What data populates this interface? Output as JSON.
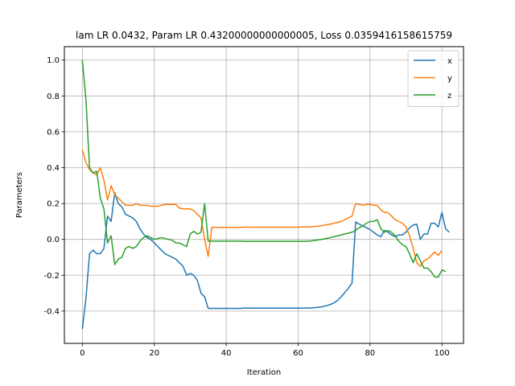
{
  "chart_data": {
    "type": "line",
    "title": "lam LR 0.0432, Param LR 0.43200000000000005, Loss 0.0359416158615759",
    "xlabel": "Iteration",
    "ylabel": "Parameters",
    "xlim": [
      -5,
      106
    ],
    "ylim": [
      -0.58,
      1.075
    ],
    "xticks": [
      0,
      20,
      40,
      60,
      80,
      100
    ],
    "yticks": [
      -0.4,
      -0.2,
      0.0,
      0.2,
      0.4,
      0.6,
      0.8,
      1.0
    ],
    "grid": true,
    "legend_position": "top-right",
    "series": [
      {
        "name": "x",
        "color": "#1f77b4",
        "values": [
          -0.5,
          -0.33,
          -0.08,
          -0.06,
          -0.08,
          -0.08,
          -0.05,
          0.13,
          0.1,
          0.26,
          0.2,
          0.18,
          0.14,
          0.13,
          0.12,
          0.1,
          0.06,
          0.03,
          0.01,
          0.0,
          -0.02,
          -0.04,
          -0.06,
          -0.08,
          -0.09,
          -0.1,
          -0.11,
          -0.13,
          -0.15,
          -0.2,
          -0.19,
          -0.2,
          -0.23,
          -0.3,
          -0.32,
          -0.385,
          -0.385,
          -0.385,
          -0.385,
          -0.385,
          -0.385,
          -0.385,
          -0.385,
          -0.385,
          -0.385,
          -0.383,
          -0.383,
          -0.383,
          -0.383,
          -0.383,
          -0.383,
          -0.383,
          -0.383,
          -0.383,
          -0.383,
          -0.383,
          -0.383,
          -0.383,
          -0.383,
          -0.383,
          -0.383,
          -0.383,
          -0.383,
          -0.383,
          -0.382,
          -0.38,
          -0.378,
          -0.374,
          -0.369,
          -0.363,
          -0.354,
          -0.34,
          -0.32,
          -0.296,
          -0.272,
          -0.244,
          0.097,
          0.085,
          0.075,
          0.065,
          0.055,
          0.04,
          0.025,
          0.015,
          0.05,
          0.04,
          0.025,
          0.015,
          0.025,
          0.025,
          0.04,
          0.065,
          0.08,
          0.085,
          0.0,
          0.03,
          0.03,
          0.09,
          0.09,
          0.07,
          0.15,
          0.06,
          0.04
        ]
      },
      {
        "name": "y",
        "color": "#ff7f0e",
        "values": [
          0.5,
          0.43,
          0.39,
          0.37,
          0.36,
          0.4,
          0.33,
          0.22,
          0.3,
          0.25,
          0.23,
          0.21,
          0.19,
          0.19,
          0.19,
          0.2,
          0.19,
          0.19,
          0.19,
          0.185,
          0.185,
          0.185,
          0.19,
          0.195,
          0.195,
          0.195,
          0.195,
          0.175,
          0.17,
          0.17,
          0.17,
          0.16,
          0.14,
          0.12,
          0.0,
          -0.095,
          0.067,
          0.067,
          0.067,
          0.067,
          0.067,
          0.067,
          0.067,
          0.067,
          0.067,
          0.068,
          0.068,
          0.068,
          0.068,
          0.068,
          0.068,
          0.068,
          0.068,
          0.068,
          0.068,
          0.068,
          0.068,
          0.068,
          0.068,
          0.068,
          0.068,
          0.069,
          0.069,
          0.07,
          0.071,
          0.073,
          0.075,
          0.078,
          0.082,
          0.085,
          0.09,
          0.095,
          0.1,
          0.11,
          0.12,
          0.13,
          0.2,
          0.195,
          0.19,
          0.195,
          0.195,
          0.19,
          0.19,
          0.165,
          0.15,
          0.15,
          0.13,
          0.11,
          0.1,
          0.09,
          0.07,
          0.02,
          -0.05,
          -0.13,
          -0.15,
          -0.12,
          -0.11,
          -0.09,
          -0.07,
          -0.09,
          -0.06
        ]
      },
      {
        "name": "z",
        "color": "#2ca02c",
        "values": [
          1.0,
          0.78,
          0.4,
          0.37,
          0.38,
          0.23,
          0.17,
          -0.02,
          0.02,
          -0.14,
          -0.11,
          -0.1,
          -0.05,
          -0.04,
          -0.05,
          -0.04,
          -0.01,
          0.01,
          0.02,
          0.01,
          0.0,
          0.005,
          0.01,
          0.005,
          0.0,
          -0.005,
          -0.02,
          -0.02,
          -0.03,
          -0.04,
          0.03,
          0.045,
          0.03,
          0.04,
          0.2,
          -0.01,
          -0.01,
          -0.01,
          -0.01,
          -0.01,
          -0.01,
          -0.01,
          -0.01,
          -0.01,
          -0.01,
          -0.011,
          -0.011,
          -0.011,
          -0.011,
          -0.011,
          -0.011,
          -0.011,
          -0.011,
          -0.011,
          -0.011,
          -0.011,
          -0.011,
          -0.011,
          -0.011,
          -0.011,
          -0.011,
          -0.011,
          -0.011,
          -0.01,
          -0.008,
          -0.005,
          -0.002,
          0.002,
          0.006,
          0.01,
          0.015,
          0.02,
          0.025,
          0.03,
          0.035,
          0.04,
          0.05,
          0.065,
          0.075,
          0.09,
          0.1,
          0.1,
          0.11,
          0.06,
          0.04,
          0.05,
          0.04,
          0.02,
          -0.01,
          -0.03,
          -0.04,
          -0.08,
          -0.13,
          -0.08,
          -0.12,
          -0.16,
          -0.16,
          -0.18,
          -0.21,
          -0.21,
          -0.17,
          -0.18
        ]
      }
    ]
  }
}
